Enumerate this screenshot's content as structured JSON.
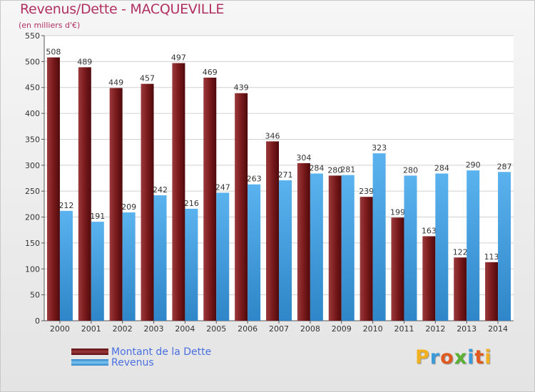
{
  "title": "Revenus/Dette - MACQUEVILLE",
  "subtitle": "(en milliers d'€)",
  "chart_data": {
    "type": "bar",
    "title": "Revenus/Dette - MACQUEVILLE",
    "subtitle": "(en milliers d'€)",
    "xlabel": "",
    "ylabel": "",
    "ylim": [
      0,
      550
    ],
    "yticks": [
      0,
      50,
      100,
      150,
      200,
      250,
      300,
      350,
      400,
      450,
      500,
      550
    ],
    "grid": true,
    "legend_position": "bottom-left",
    "categories": [
      "2000",
      "2001",
      "2002",
      "2003",
      "2004",
      "2005",
      "2006",
      "2007",
      "2008",
      "2009",
      "2010",
      "2011",
      "2012",
      "2013",
      "2014"
    ],
    "series": [
      {
        "name": "Montant de la Dette",
        "color": "#7a1a1c",
        "values": [
          508,
          489,
          449,
          457,
          497,
          469,
          439,
          346,
          304,
          280,
          239,
          199,
          163,
          122,
          113
        ]
      },
      {
        "name": "Revenus",
        "color": "#4aa6e8",
        "values": [
          212,
          191,
          209,
          242,
          216,
          247,
          263,
          271,
          284,
          281,
          323,
          280,
          284,
          290,
          287
        ]
      }
    ]
  },
  "legend": {
    "items": [
      {
        "label": "Montant de la Dette",
        "color": "#7a1a1c"
      },
      {
        "label": "Revenus",
        "color": "#4aa6e8"
      }
    ]
  },
  "logo": {
    "letters": [
      "P",
      "r",
      "o",
      "x",
      "i",
      "t",
      "i"
    ]
  }
}
